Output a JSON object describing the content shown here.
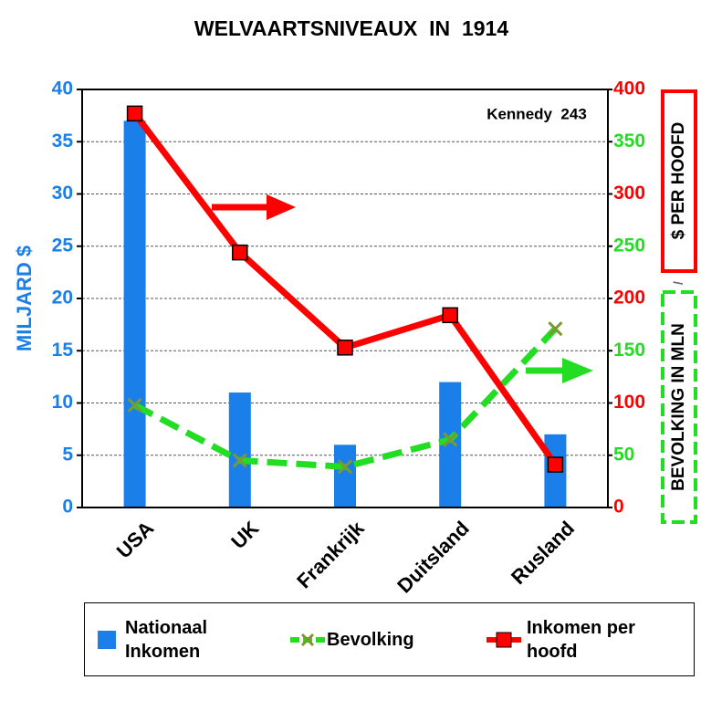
{
  "chart_data": {
    "type": "bar",
    "title": "WELVAARTSNIVEAUX  IN  1914",
    "ylabel": "MILJARD $",
    "y2label_parts": [
      {
        "text": "$ PER HOOFD",
        "color": "#ff0000",
        "box": "solid"
      },
      {
        "text": "/",
        "color": "#000000"
      },
      {
        "text": "BEVOLKING IN MLN",
        "color": "#22dd22",
        "box": "dashed"
      }
    ],
    "annotation": "Kennedy  243",
    "categories": [
      "USA",
      "UK",
      "Frankrijk",
      "Duitsland",
      "Rusland"
    ],
    "series": [
      {
        "name": "Nationaal Inkomen",
        "type": "bar",
        "color": "#1a7fe8",
        "axis": "y",
        "values": [
          37,
          11,
          6,
          12,
          7
        ]
      },
      {
        "name": "Bevolking",
        "type": "line",
        "style": "dashed",
        "marker": "x",
        "color": "#22dd22",
        "axis": "y2",
        "values": [
          98,
          45,
          39,
          65,
          171
        ]
      },
      {
        "name": "Inkomen per hoofd",
        "type": "line",
        "style": "solid",
        "marker": "square",
        "color": "#ff0000",
        "axis": "y2",
        "values": [
          377,
          244,
          153,
          184,
          41
        ]
      }
    ],
    "ylim": [
      0,
      40
    ],
    "yticks": [
      0,
      5,
      10,
      15,
      20,
      25,
      30,
      35,
      40
    ],
    "ytick_color": "#1a7fe8",
    "y2lim": [
      0,
      400
    ],
    "y2ticks": [
      0,
      50,
      100,
      150,
      200,
      250,
      300,
      350,
      400
    ],
    "y2tick_colors": [
      "#ff0000",
      "#22dd22",
      "#ff0000",
      "#22dd22",
      "#ff0000",
      "#22dd22",
      "#ff0000",
      "#22dd22",
      "#ff0000"
    ],
    "grid": true
  }
}
